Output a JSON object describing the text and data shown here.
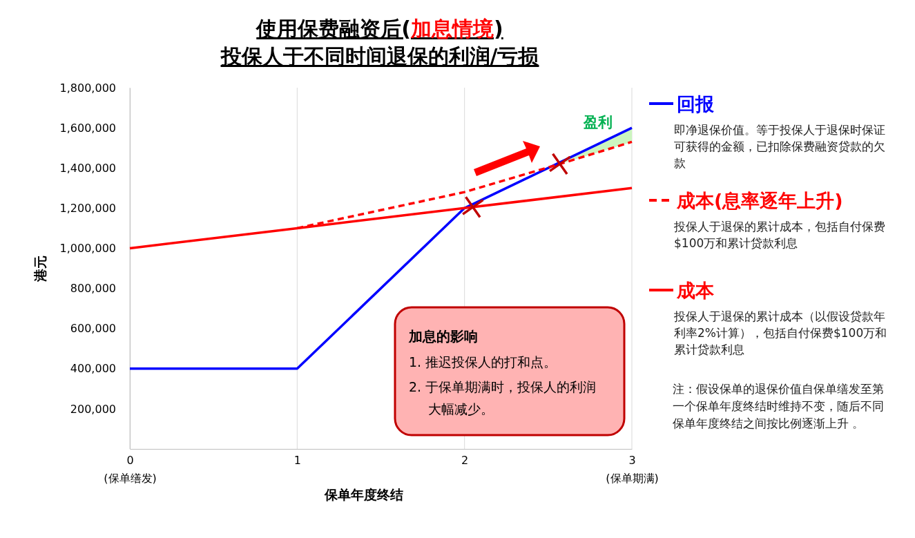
{
  "chart_data": {
    "type": "line",
    "title": "使用保费融资后(加息情境)",
    "subtitle": "投保人于不同时间退保的利润/亏损",
    "xlabel": "保单年度终结",
    "ylabel": "港元",
    "xlim": [
      0,
      3
    ],
    "xticks": [
      {
        "value": 0,
        "label": "0\n(保单缮发)"
      },
      1,
      2,
      {
        "value": 3,
        "label": "3\n(保单期满)"
      }
    ],
    "ylim": [
      0,
      1800000
    ],
    "yticks": [
      {
        "value": 200000,
        "label": "200,000"
      },
      {
        "value": 400000,
        "label": "400,000"
      },
      {
        "value": 600000,
        "label": "600,000"
      },
      {
        "value": 800000,
        "label": "800,000"
      },
      {
        "value": 1000000,
        "label": "1,000,000"
      },
      {
        "value": 1200000,
        "label": "1,200,000"
      },
      {
        "value": 1400000,
        "label": "1,400,000"
      },
      {
        "value": 1600000,
        "label": "1,600,000"
      },
      {
        "value": 1800000,
        "label": "1,800,000"
      }
    ],
    "grid": "x",
    "legend": "right",
    "series": [
      {
        "name": "回报",
        "color": "#0000ff",
        "x": [
          0,
          1,
          2,
          3
        ],
        "values": [
          400000,
          400000,
          1200000,
          1600000
        ],
        "line_style": "solid"
      },
      {
        "name": "成本(息率逐年上升)",
        "color": "#ff0000",
        "x": [
          1,
          2,
          2.57,
          3
        ],
        "values": [
          1100000,
          1280000,
          1420000,
          1530000
        ],
        "lower": [
          null,
          null,
          1420000,
          1530000
        ],
        "upper": [
          null,
          null,
          1420000,
          1600000
        ],
        "line_style": "dashed"
      },
      {
        "name": "成本",
        "color": "#ff0000",
        "x": [
          0,
          1,
          2,
          3
        ],
        "values": [
          1000000,
          1100000,
          1200000,
          1300000
        ],
        "line_style": "solid"
      },
      {
        "type": "scatter",
        "color": "#c00000",
        "marker": "cross",
        "x": [
          2.05,
          2.57
        ],
        "values": [
          1205000,
          1420000
        ]
      }
    ],
    "annotations": [
      "加息的影响",
      "1. 推迟投保人的打和点。",
      "2. 于保单期满时，投保人的利润大幅减少。",
      "即净退保价值。等于投保人于退保时保证可获得的金额，已扣除保费融资贷款的欠款",
      "投保人于退保的累计成本，包括自付保费$100万和累计贷款利息",
      "投保人于退保的累计成本（以假设贷款年利率2%计算），包括自付保费$100万和累计贷款利息",
      "注：假设保单的退保价值自保单缮发至第一个保单年度终结时维持不变，随后不同保单年度终结之间按比例逐渐上升 。",
      "盈利"
    ]
  }
}
